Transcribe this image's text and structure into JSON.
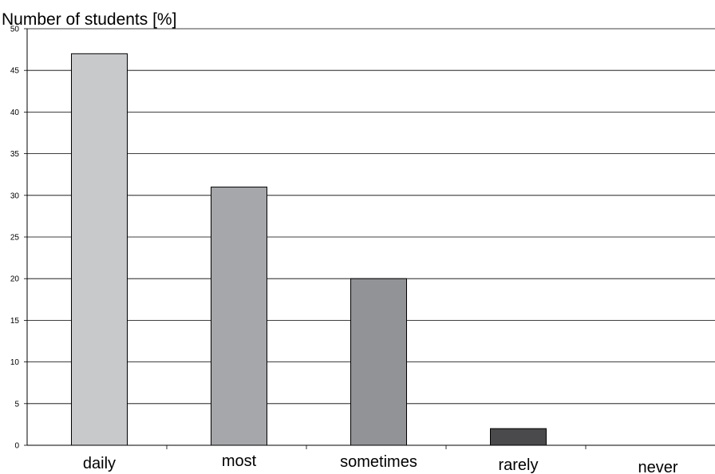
{
  "chart_data": {
    "type": "bar",
    "title": "",
    "ylabel": "Number of students [%]",
    "xlabel": "",
    "ylim": [
      0,
      50
    ],
    "yticks": [
      0,
      5,
      10,
      15,
      20,
      25,
      30,
      35,
      40,
      45,
      50
    ],
    "categories": [
      "daily",
      "most",
      "sometimes",
      "rarely",
      "never"
    ],
    "values": [
      47,
      31,
      20,
      2,
      0
    ],
    "bar_colors": [
      "#c8c9cb",
      "#a6a7aa",
      "#929396",
      "#4a4a4c",
      "#ffffff"
    ],
    "grid": true
  }
}
